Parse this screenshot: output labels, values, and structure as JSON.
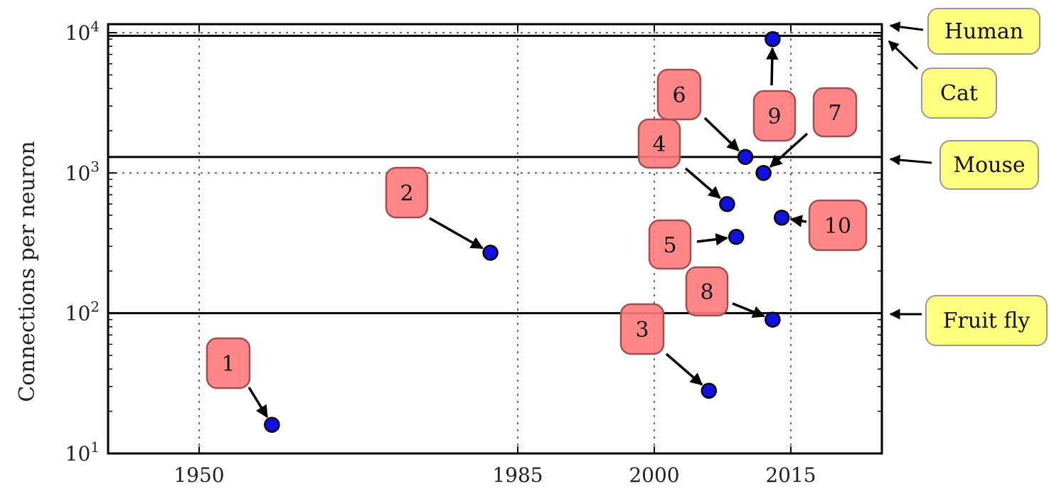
{
  "chart_data": {
    "type": "scatter",
    "title": "",
    "xlabel": "",
    "ylabel": "Connections per neuron",
    "yscale": "log",
    "xlim": [
      1940,
      2025
    ],
    "ylim": [
      10,
      10000
    ],
    "xticks": [
      1950,
      1985,
      2000,
      2015
    ],
    "xtick_labels": [
      "1950",
      "1985",
      "2000",
      "2015"
    ],
    "yticks": [
      10,
      100,
      1000,
      10000
    ],
    "ytick_labels": [
      {
        "base": "10",
        "exp": "1"
      },
      {
        "base": "10",
        "exp": "2"
      },
      {
        "base": "10",
        "exp": "3"
      },
      {
        "base": "10",
        "exp": "4"
      }
    ],
    "grid": true,
    "points": [
      {
        "label": "1",
        "x": 1958,
        "y": 16
      },
      {
        "label": "2",
        "x": 1982,
        "y": 270
      },
      {
        "label": "3",
        "x": 2006,
        "y": 28
      },
      {
        "label": "4",
        "x": 2008,
        "y": 600
      },
      {
        "label": "5",
        "x": 2009,
        "y": 350
      },
      {
        "label": "6",
        "x": 2010,
        "y": 1300
      },
      {
        "label": "7",
        "x": 2012,
        "y": 1000
      },
      {
        "label": "8",
        "x": 2013,
        "y": 90
      },
      {
        "label": "9",
        "x": 2013,
        "y": 9000
      },
      {
        "label": "10",
        "x": 2014,
        "y": 480
      }
    ],
    "reference_lines": [
      {
        "label": "Human",
        "y": 11000
      },
      {
        "label": "Cat",
        "y": 9500
      },
      {
        "label": "Mouse",
        "y": 1300
      },
      {
        "label": "Fruit fly",
        "y": 100
      }
    ],
    "colors": {
      "point": "#1010e0",
      "annotation_box": "#ff7a7a",
      "reference_box": "#ffff80"
    }
  }
}
